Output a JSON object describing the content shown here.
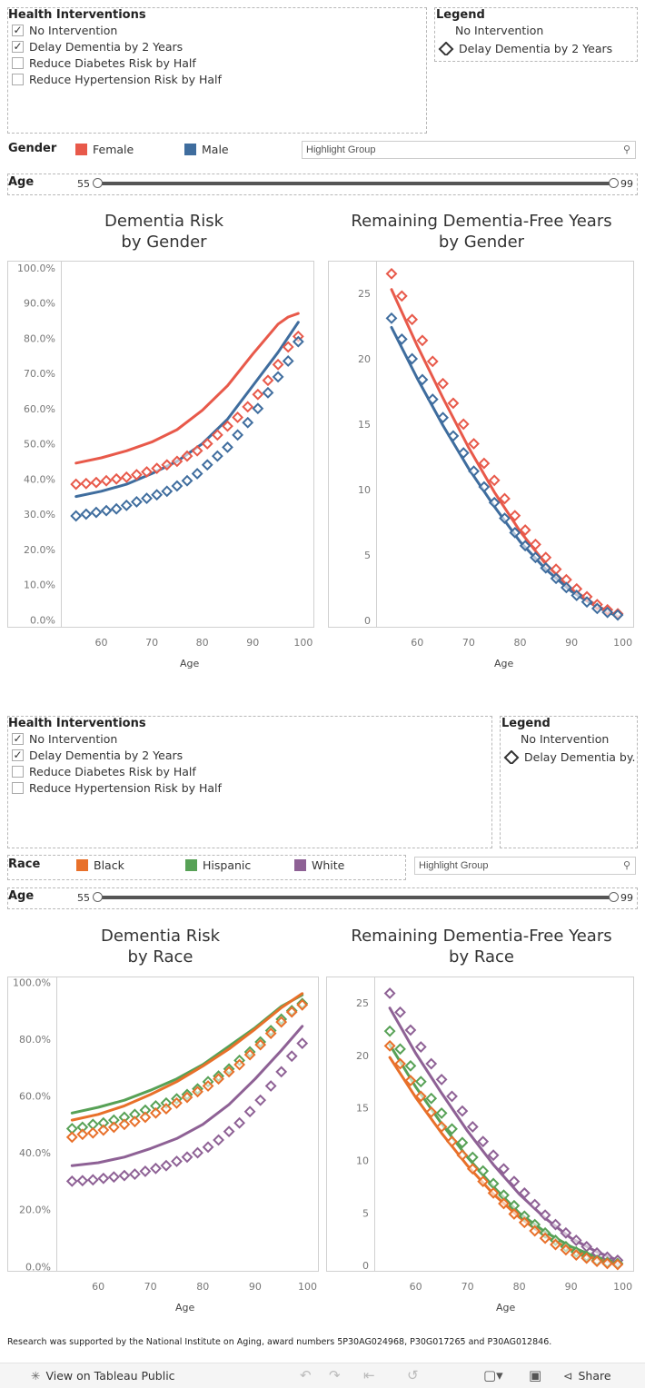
{
  "section1": {
    "interventions": {
      "title": "Health Interventions",
      "items": [
        {
          "label": "No Intervention",
          "checked": true
        },
        {
          "label": "Delay Dementia by 2 Years",
          "checked": true
        },
        {
          "label": "Reduce Diabetes Risk by Half",
          "checked": false
        },
        {
          "label": "Reduce Hypertension Risk by Half",
          "checked": false
        }
      ]
    },
    "legend": {
      "title": "Legend",
      "no_intervention": "No Intervention",
      "delay": "Delay Dementia by 2 Years"
    },
    "group": {
      "label": "Gender",
      "items": [
        {
          "label": "Female",
          "color": "#e8594a"
        },
        {
          "label": "Male",
          "color": "#3f6d9e"
        }
      ],
      "highlight_placeholder": "Highlight Group"
    },
    "age": {
      "label": "Age",
      "min": "55",
      "max": "99"
    },
    "chart_left_title": [
      "Dementia Risk",
      "by Gender"
    ],
    "chart_right_title": [
      "Remaining Dementia-Free Years",
      "by Gender"
    ],
    "xlabel": "Age"
  },
  "section2": {
    "interventions": {
      "title": "Health Interventions",
      "items": [
        {
          "label": "No Intervention",
          "checked": true
        },
        {
          "label": "Delay Dementia by 2 Years",
          "checked": true
        },
        {
          "label": "Reduce Diabetes Risk by Half",
          "checked": false
        },
        {
          "label": "Reduce Hypertension Risk by Half",
          "checked": false
        }
      ]
    },
    "legend": {
      "title": "Legend",
      "no_intervention": "No Intervention",
      "delay": "Delay Dementia by..."
    },
    "group": {
      "label": "Race",
      "items": [
        {
          "label": "Black",
          "color": "#e8702a"
        },
        {
          "label": "Hispanic",
          "color": "#57a156"
        },
        {
          "label": "White",
          "color": "#8e6195"
        }
      ],
      "highlight_placeholder": "Highlight Group"
    },
    "age": {
      "label": "Age",
      "min": "55",
      "max": "99"
    },
    "chart_left_title": [
      "Dementia Risk",
      "by Race"
    ],
    "chart_right_title": [
      "Remaining Dementia-Free Years",
      "by Race"
    ],
    "xlabel": "Age"
  },
  "footer": {
    "note": "Research was supported by the National Institute on Aging, award numbers 5P30AG024968, P30G017265 and P30AG012846.",
    "view_label": "View on Tableau Public",
    "share_label": "Share"
  },
  "chart_data": [
    {
      "id": "risk_gender",
      "type": "line",
      "title": "Dementia Risk by Gender",
      "xlabel": "Age",
      "ylabel": "",
      "xlim": [
        52,
        102
      ],
      "ylim": [
        -2,
        102
      ],
      "xticks": [
        60,
        70,
        80,
        90,
        100
      ],
      "yticks": [
        0,
        10,
        20,
        30,
        40,
        50,
        60,
        70,
        80,
        90,
        100
      ],
      "yformat": "pct1",
      "lines": [
        {
          "name": "Female - No Intervention",
          "color": "#e8594a",
          "x": [
            55,
            60,
            65,
            70,
            75,
            80,
            85,
            90,
            95,
            97,
            99
          ],
          "y": [
            44.5,
            46,
            48,
            50.5,
            54,
            59.5,
            66.5,
            75.5,
            84,
            86,
            87
          ]
        },
        {
          "name": "Male - No Intervention",
          "color": "#3f6d9e",
          "x": [
            55,
            60,
            65,
            70,
            75,
            80,
            85,
            90,
            95,
            99
          ],
          "y": [
            35,
            36.5,
            38.5,
            41.5,
            45,
            50,
            57,
            66.5,
            76,
            84.5
          ]
        }
      ],
      "markers": [
        {
          "name": "Female - Delay Dementia by 2 Years",
          "color": "#e8594a",
          "x": [
            55,
            57,
            59,
            61,
            63,
            65,
            67,
            69,
            71,
            73,
            75,
            77,
            79,
            81,
            83,
            85,
            87,
            89,
            91,
            93,
            95,
            97,
            99
          ],
          "y": [
            38.5,
            38.7,
            39,
            39.5,
            40,
            40.5,
            41.2,
            42,
            43,
            44,
            45,
            46.5,
            48,
            50,
            52.5,
            55,
            57.5,
            60.5,
            64,
            68,
            72.5,
            77.5,
            80.5
          ]
        },
        {
          "name": "Male - Delay Dementia by 2 Years",
          "color": "#3f6d9e",
          "x": [
            55,
            57,
            59,
            61,
            63,
            65,
            67,
            69,
            71,
            73,
            75,
            77,
            79,
            81,
            83,
            85,
            87,
            89,
            91,
            93,
            95,
            97,
            99
          ],
          "y": [
            29.5,
            30,
            30.5,
            31,
            31.5,
            32.5,
            33.5,
            34.5,
            35.5,
            36.5,
            38,
            39.5,
            41.5,
            44,
            46.5,
            49,
            52.5,
            56,
            60,
            64.5,
            69,
            73.5,
            79
          ]
        }
      ]
    },
    {
      "id": "years_gender",
      "type": "line",
      "title": "Remaining Dementia-Free Years by Gender",
      "xlabel": "Age",
      "ylabel": "",
      "xlim": [
        52,
        102
      ],
      "ylim": [
        -0.5,
        27.5
      ],
      "xticks": [
        60,
        70,
        80,
        90,
        100
      ],
      "yticks": [
        0,
        5,
        10,
        15,
        20,
        25
      ],
      "yformat": "int",
      "lines": [
        {
          "name": "Female - No Intervention",
          "color": "#e8594a",
          "x": [
            55,
            60,
            65,
            70,
            75,
            80,
            85,
            90,
            95,
            99
          ],
          "y": [
            25.3,
            21,
            17,
            13.2,
            9.8,
            6.8,
            4.3,
            2.4,
            1.1,
            0.3
          ]
        },
        {
          "name": "Male - No Intervention",
          "color": "#3f6d9e",
          "x": [
            55,
            60,
            65,
            70,
            75,
            80,
            85,
            90,
            95,
            99
          ],
          "y": [
            22.4,
            18.5,
            14.9,
            11.6,
            8.7,
            6,
            3.9,
            2.2,
            1,
            0.3
          ]
        }
      ],
      "markers": [
        {
          "name": "Female - Delay Dementia by 2 Years",
          "color": "#e8594a",
          "x": [
            55,
            57,
            59,
            61,
            63,
            65,
            67,
            69,
            71,
            73,
            75,
            77,
            79,
            81,
            83,
            85,
            87,
            89,
            91,
            93,
            95,
            97,
            99
          ],
          "y": [
            26.5,
            24.8,
            23,
            21.4,
            19.8,
            18.1,
            16.6,
            15,
            13.5,
            12,
            10.7,
            9.3,
            8,
            6.9,
            5.8,
            4.8,
            3.9,
            3.1,
            2.4,
            1.8,
            1.2,
            0.8,
            0.5
          ]
        },
        {
          "name": "Male - Delay Dementia by 2 Years",
          "color": "#3f6d9e",
          "x": [
            55,
            57,
            59,
            61,
            63,
            65,
            67,
            69,
            71,
            73,
            75,
            77,
            79,
            81,
            83,
            85,
            87,
            89,
            91,
            93,
            95,
            97,
            99
          ],
          "y": [
            23.1,
            21.5,
            20,
            18.4,
            16.9,
            15.5,
            14.1,
            12.8,
            11.4,
            10.2,
            9,
            7.8,
            6.7,
            5.7,
            4.8,
            4,
            3.2,
            2.5,
            1.9,
            1.4,
            0.9,
            0.6,
            0.4
          ]
        }
      ]
    },
    {
      "id": "risk_race",
      "type": "line",
      "title": "Dementia Risk by Race",
      "xlabel": "Age",
      "ylabel": "",
      "xlim": [
        52,
        102
      ],
      "ylim": [
        -1.5,
        102
      ],
      "xticks": [
        60,
        70,
        80,
        90,
        100
      ],
      "yticks": [
        0,
        20,
        40,
        60,
        80,
        100
      ],
      "yformat": "pct1",
      "lines": [
        {
          "name": "Hispanic - No Intervention",
          "color": "#57a156",
          "x": [
            55,
            60,
            65,
            70,
            75,
            80,
            85,
            90,
            95,
            99
          ],
          "y": [
            54,
            56,
            58.5,
            62,
            66,
            71,
            77.5,
            84,
            91.5,
            95.5
          ]
        },
        {
          "name": "Black - No Intervention",
          "color": "#e8702a",
          "x": [
            55,
            60,
            65,
            70,
            75,
            80,
            85,
            90,
            95,
            99
          ],
          "y": [
            51.5,
            53.5,
            56.5,
            60.5,
            65,
            70.5,
            76.5,
            83.5,
            91,
            96
          ]
        },
        {
          "name": "White - No Intervention",
          "color": "#8e6195",
          "x": [
            55,
            60,
            65,
            70,
            75,
            80,
            85,
            90,
            95,
            99
          ],
          "y": [
            35.5,
            36.5,
            38.5,
            41.5,
            45,
            50,
            57,
            66,
            76,
            84.5
          ]
        }
      ],
      "markers": [
        {
          "name": "Hispanic - Delay Dementia by 2 Years",
          "color": "#57a156",
          "x": [
            55,
            57,
            59,
            61,
            63,
            65,
            67,
            69,
            71,
            73,
            75,
            77,
            79,
            81,
            83,
            85,
            87,
            89,
            91,
            93,
            95,
            97,
            99
          ],
          "y": [
            48.5,
            49,
            50,
            50.5,
            51.5,
            52.5,
            53.5,
            55,
            56.5,
            57.5,
            59,
            60.5,
            62.5,
            65,
            67,
            69.5,
            72.5,
            75.5,
            79,
            83,
            87,
            90,
            92.5
          ]
        },
        {
          "name": "Black - Delay Dementia by 2 Years",
          "color": "#e8702a",
          "x": [
            55,
            57,
            59,
            61,
            63,
            65,
            67,
            69,
            71,
            73,
            75,
            77,
            79,
            81,
            83,
            85,
            87,
            89,
            91,
            93,
            95,
            97,
            99
          ],
          "y": [
            45.5,
            46.5,
            47,
            48,
            49,
            50,
            51,
            52.5,
            54,
            55.5,
            57.5,
            59.5,
            61.5,
            63.5,
            66,
            68.5,
            71,
            74.5,
            78,
            82,
            86,
            89.5,
            92
          ]
        },
        {
          "name": "White - Delay Dementia by 2 Years",
          "color": "#8e6195",
          "x": [
            55,
            57,
            59,
            61,
            63,
            65,
            67,
            69,
            71,
            73,
            75,
            77,
            79,
            81,
            83,
            85,
            87,
            89,
            91,
            93,
            95,
            97,
            99
          ],
          "y": [
            30,
            30.2,
            30.5,
            31,
            31.5,
            32,
            32.5,
            33.5,
            34.5,
            35.5,
            37,
            38.5,
            40,
            42,
            44.5,
            47.5,
            50.5,
            54.5,
            58.5,
            63.5,
            68.5,
            74,
            78.5
          ]
        }
      ]
    },
    {
      "id": "years_race",
      "type": "line",
      "title": "Remaining Dementia-Free Years by Race",
      "xlabel": "Age",
      "ylabel": "",
      "xlim": [
        52,
        102
      ],
      "ylim": [
        -0.5,
        27.5
      ],
      "xticks": [
        60,
        70,
        80,
        90,
        100
      ],
      "yticks": [
        0,
        5,
        10,
        15,
        20,
        25
      ],
      "yformat": "int",
      "lines": [
        {
          "name": "White - No Intervention",
          "color": "#8e6195",
          "x": [
            55,
            60,
            65,
            70,
            75,
            80,
            85,
            90,
            95,
            99
          ],
          "y": [
            24.5,
            20.2,
            16.4,
            12.8,
            9.6,
            6.8,
            4.5,
            2.6,
            1.3,
            0.5
          ]
        },
        {
          "name": "Hispanic - No Intervention",
          "color": "#57a156",
          "x": [
            55,
            60,
            65,
            70,
            75,
            80,
            85,
            90,
            95,
            99
          ],
          "y": [
            21,
            17,
            13.5,
            10.3,
            7.5,
            5,
            3.2,
            1.8,
            0.8,
            0.3
          ]
        },
        {
          "name": "Black - No Intervention",
          "color": "#e8702a",
          "x": [
            55,
            60,
            65,
            70,
            75,
            80,
            85,
            90,
            95,
            99
          ],
          "y": [
            19.8,
            16,
            12.6,
            9.5,
            6.8,
            4.6,
            2.8,
            1.5,
            0.6,
            0.2
          ]
        }
      ],
      "markers": [
        {
          "name": "White - Delay Dementia by 2 Years",
          "color": "#8e6195",
          "x": [
            55,
            57,
            59,
            61,
            63,
            65,
            67,
            69,
            71,
            73,
            75,
            77,
            79,
            81,
            83,
            85,
            87,
            89,
            91,
            93,
            95,
            97,
            99
          ],
          "y": [
            25.9,
            24.1,
            22.4,
            20.8,
            19.2,
            17.7,
            16.1,
            14.7,
            13.2,
            11.8,
            10.5,
            9.2,
            8,
            6.9,
            5.8,
            4.8,
            3.9,
            3.1,
            2.4,
            1.8,
            1.2,
            0.8,
            0.5
          ]
        },
        {
          "name": "Hispanic - Delay Dementia by 2 Years",
          "color": "#57a156",
          "x": [
            55,
            57,
            59,
            61,
            63,
            65,
            67,
            69,
            71,
            73,
            75,
            77,
            79,
            81,
            83,
            85,
            87,
            89,
            91,
            93,
            95,
            97,
            99
          ],
          "y": [
            22.3,
            20.6,
            19,
            17.5,
            15.9,
            14.5,
            13,
            11.7,
            10.3,
            9,
            7.8,
            6.7,
            5.7,
            4.7,
            3.9,
            3.1,
            2.4,
            1.8,
            1.3,
            0.9,
            0.5,
            0.3,
            0.2
          ]
        },
        {
          "name": "Black - Delay Dementia by 2 Years",
          "color": "#e8702a",
          "x": [
            55,
            57,
            59,
            61,
            63,
            65,
            67,
            69,
            71,
            73,
            75,
            77,
            79,
            81,
            83,
            85,
            87,
            89,
            91,
            93,
            95,
            97,
            99
          ],
          "y": [
            20.9,
            19.2,
            17.6,
            16.1,
            14.6,
            13.2,
            11.8,
            10.5,
            9.2,
            8,
            6.9,
            5.9,
            4.9,
            4.1,
            3.3,
            2.6,
            2,
            1.5,
            1,
            0.7,
            0.4,
            0.2,
            0.1
          ]
        }
      ]
    }
  ]
}
